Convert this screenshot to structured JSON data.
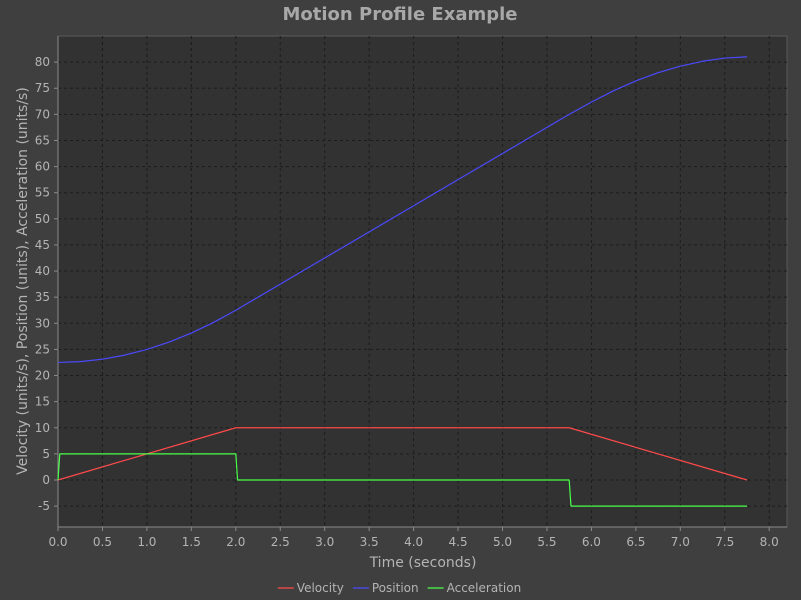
{
  "chart_data": {
    "type": "line",
    "title": "Motion Profile Example",
    "xlabel": "Time (seconds)",
    "ylabel": "Velocity (units/s), Position (units), Acceleration (units/s)",
    "xlim": [
      0.0,
      8.2
    ],
    "ylim": [
      -9.0,
      85.0
    ],
    "x_ticks": [
      "0.0",
      "0.5",
      "1.0",
      "1.5",
      "2.0",
      "2.5",
      "3.0",
      "3.5",
      "4.0",
      "4.5",
      "5.0",
      "5.5",
      "6.0",
      "6.5",
      "7.0",
      "7.5",
      "8.0"
    ],
    "y_ticks": [
      "-5",
      "0",
      "5",
      "10",
      "15",
      "20",
      "25",
      "30",
      "35",
      "40",
      "45",
      "50",
      "55",
      "60",
      "65",
      "70",
      "75",
      "80"
    ],
    "grid": true,
    "legend_position": "bottom",
    "series": [
      {
        "name": "Velocity",
        "color": "#ff4a4a",
        "x": [
          0.0,
          2.0,
          5.75,
          7.75
        ],
        "y": [
          0.0,
          10.0,
          10.0,
          0.0
        ]
      },
      {
        "name": "Position",
        "color": "#4a4aff",
        "x": [
          0.0,
          0.25,
          0.5,
          0.75,
          1.0,
          1.25,
          1.5,
          1.75,
          2.0,
          2.5,
          3.0,
          3.5,
          4.0,
          4.5,
          5.0,
          5.5,
          5.75,
          6.0,
          6.25,
          6.5,
          6.75,
          7.0,
          7.25,
          7.5,
          7.75
        ],
        "y": [
          22.5,
          22.66,
          23.13,
          23.91,
          25.0,
          26.41,
          28.13,
          30.16,
          32.5,
          37.5,
          42.5,
          47.5,
          52.5,
          57.5,
          62.5,
          67.5,
          70.0,
          72.34,
          74.53,
          76.41,
          77.97,
          79.22,
          80.16,
          80.78,
          81.0
        ]
      },
      {
        "name": "Acceleration",
        "color": "#4aff4a",
        "x": [
          0.0,
          0.02,
          2.0,
          2.02,
          5.75,
          5.77,
          7.75
        ],
        "y": [
          0.0,
          5.0,
          5.0,
          0.0,
          0.0,
          -5.0,
          -5.0
        ]
      }
    ]
  }
}
